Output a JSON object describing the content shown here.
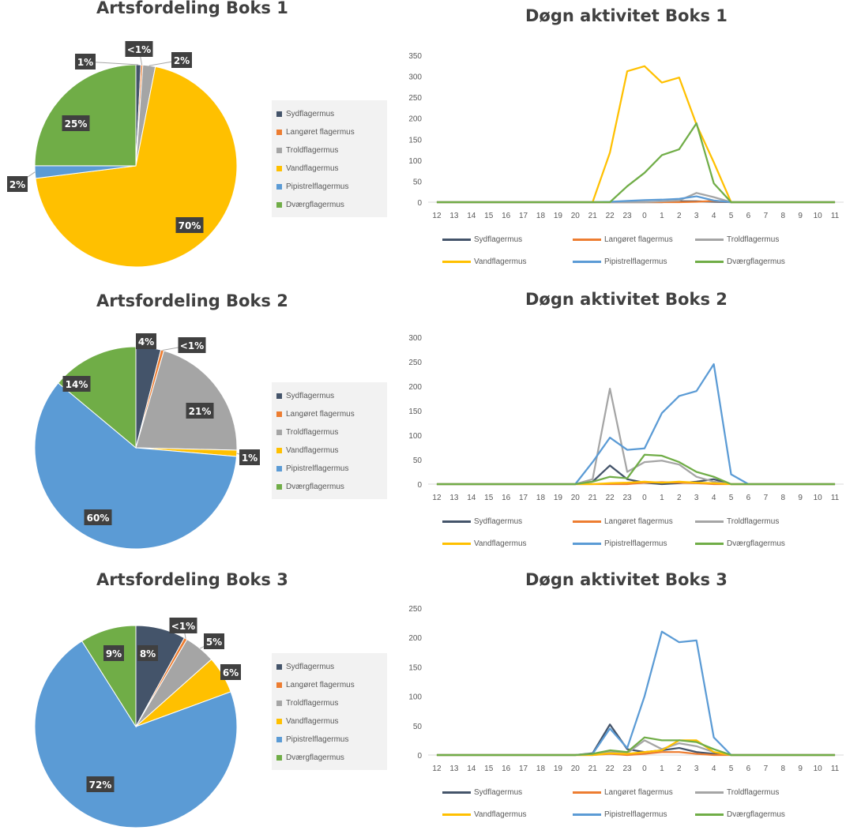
{
  "species": [
    "Sydflagermus",
    "Langøret flagermus",
    "Troldflagermus",
    "Vandflagermus",
    "Pipistrelflagermus",
    "Dværgflagermus"
  ],
  "colors": [
    "#44546a",
    "#ed7d31",
    "#a5a5a5",
    "#ffc000",
    "#5b9bd5",
    "#70ad47"
  ],
  "chart_data": [
    {
      "type": "pie",
      "title": "Artsfordeling Boks 1",
      "categories": [
        "Sydflagermus",
        "Langøret flagermus",
        "Troldflagermus",
        "Vandflagermus",
        "Pipistrelflagermus",
        "Dværgflagermus"
      ],
      "values": [
        0.8,
        0.3,
        2,
        70,
        2,
        25
      ],
      "labels": [
        "1%",
        "<1%",
        "2%",
        "70%",
        "2%",
        "25%"
      ],
      "legend": "right"
    },
    {
      "type": "line",
      "title": "Døgn aktivitet Boks 1",
      "categories": [
        "12",
        "13",
        "14",
        "15",
        "16",
        "17",
        "18",
        "19",
        "20",
        "21",
        "22",
        "23",
        "0",
        "1",
        "2",
        "3",
        "4",
        "5",
        "6",
        "7",
        "8",
        "9",
        "10",
        "11"
      ],
      "ylim": [
        0,
        350
      ],
      "yticks": [
        0,
        50,
        100,
        150,
        200,
        250,
        300,
        350
      ],
      "series": [
        {
          "name": "Sydflagermus",
          "values": [
            0,
            0,
            0,
            0,
            0,
            0,
            0,
            0,
            0,
            0,
            0,
            0,
            0,
            0,
            2,
            2,
            1,
            0,
            0,
            0,
            0,
            0,
            0,
            0
          ]
        },
        {
          "name": "Langøret flagermus",
          "values": [
            0,
            0,
            0,
            0,
            0,
            0,
            0,
            0,
            0,
            0,
            0,
            0,
            0,
            0,
            0,
            1,
            3,
            0,
            0,
            0,
            0,
            0,
            0,
            0
          ]
        },
        {
          "name": "Troldflagermus",
          "values": [
            0,
            0,
            0,
            0,
            0,
            0,
            0,
            0,
            0,
            0,
            0,
            0,
            0,
            2,
            4,
            22,
            12,
            0,
            0,
            0,
            0,
            0,
            0,
            0
          ]
        },
        {
          "name": "Vandflagermus",
          "values": [
            0,
            0,
            0,
            0,
            0,
            0,
            0,
            0,
            0,
            0,
            118,
            312,
            324,
            285,
            297,
            185,
            95,
            0,
            0,
            0,
            0,
            0,
            0,
            0
          ]
        },
        {
          "name": "Pipistrelflagermus",
          "values": [
            0,
            0,
            0,
            0,
            0,
            0,
            0,
            0,
            0,
            0,
            1,
            3,
            5,
            6,
            8,
            14,
            4,
            0,
            0,
            0,
            0,
            0,
            0,
            0
          ]
        },
        {
          "name": "Dværgflagermus",
          "values": [
            0,
            0,
            0,
            0,
            0,
            0,
            0,
            0,
            0,
            0,
            0,
            38,
            70,
            112,
            126,
            188,
            45,
            0,
            0,
            0,
            0,
            0,
            0,
            0
          ]
        }
      ],
      "legend": "bottom"
    },
    {
      "type": "pie",
      "title": "Artsfordeling Boks 2",
      "categories": [
        "Sydflagermus",
        "Langøret flagermus",
        "Troldflagermus",
        "Vandflagermus",
        "Pipistrelflagermus",
        "Dværgflagermus"
      ],
      "values": [
        4,
        0.5,
        21,
        1,
        60,
        14
      ],
      "labels": [
        "4%",
        "<1%",
        "21%",
        "1%",
        "60%",
        "14%"
      ],
      "legend": "right"
    },
    {
      "type": "line",
      "title": "Døgn aktivitet Boks 2",
      "categories": [
        "12",
        "13",
        "14",
        "15",
        "16",
        "17",
        "18",
        "19",
        "20",
        "21",
        "22",
        "23",
        "0",
        "1",
        "2",
        "3",
        "4",
        "5",
        "6",
        "7",
        "8",
        "9",
        "10",
        "11"
      ],
      "ylim": [
        0,
        300
      ],
      "yticks": [
        0,
        50,
        100,
        150,
        200,
        250,
        300
      ],
      "series": [
        {
          "name": "Sydflagermus",
          "values": [
            0,
            0,
            0,
            0,
            0,
            0,
            0,
            0,
            0,
            5,
            38,
            10,
            3,
            0,
            2,
            5,
            10,
            0,
            0,
            0,
            0,
            0,
            0,
            0
          ]
        },
        {
          "name": "Langøret flagermus",
          "values": [
            0,
            0,
            0,
            0,
            0,
            0,
            0,
            0,
            0,
            0,
            0,
            0,
            3,
            4,
            3,
            2,
            0,
            0,
            0,
            0,
            0,
            0,
            0,
            0
          ]
        },
        {
          "name": "Troldflagermus",
          "values": [
            0,
            0,
            0,
            0,
            0,
            0,
            0,
            0,
            0,
            10,
            195,
            25,
            45,
            48,
            40,
            15,
            5,
            0,
            0,
            0,
            0,
            0,
            0,
            0
          ]
        },
        {
          "name": "Vandflagermus",
          "values": [
            0,
            0,
            0,
            0,
            0,
            0,
            0,
            0,
            0,
            0,
            2,
            3,
            5,
            3,
            5,
            3,
            2,
            0,
            0,
            0,
            0,
            0,
            0,
            0
          ]
        },
        {
          "name": "Pipistrelflagermus",
          "values": [
            0,
            0,
            0,
            0,
            0,
            0,
            0,
            0,
            0,
            45,
            95,
            70,
            73,
            145,
            180,
            190,
            245,
            20,
            0,
            0,
            0,
            0,
            0,
            0
          ]
        },
        {
          "name": "Dværgflagermus",
          "values": [
            0,
            0,
            0,
            0,
            0,
            0,
            0,
            0,
            0,
            5,
            15,
            12,
            60,
            58,
            45,
            25,
            15,
            0,
            0,
            0,
            0,
            0,
            0,
            0
          ]
        }
      ],
      "legend": "bottom"
    },
    {
      "type": "pie",
      "title": "Artsfordeling Boks 3",
      "categories": [
        "Sydflagermus",
        "Langøret flagermus",
        "Troldflagermus",
        "Vandflagermus",
        "Pipistrelflagermus",
        "Dværgflagermus"
      ],
      "values": [
        8,
        0.5,
        5,
        6,
        72,
        9
      ],
      "labels": [
        "8%",
        "<1%",
        "5%",
        "6%",
        "72%",
        "9%"
      ],
      "legend": "right"
    },
    {
      "type": "line",
      "title": "Døgn aktivitet Boks 3",
      "categories": [
        "12",
        "13",
        "14",
        "15",
        "16",
        "17",
        "18",
        "19",
        "20",
        "21",
        "22",
        "23",
        "0",
        "1",
        "2",
        "3",
        "4",
        "5",
        "6",
        "7",
        "8",
        "9",
        "10",
        "11"
      ],
      "ylim": [
        0,
        250
      ],
      "yticks": [
        0,
        50,
        100,
        150,
        200,
        250
      ],
      "series": [
        {
          "name": "Sydflagermus",
          "values": [
            0,
            0,
            0,
            0,
            0,
            0,
            0,
            0,
            0,
            3,
            52,
            10,
            5,
            8,
            12,
            5,
            2,
            0,
            0,
            0,
            0,
            0,
            0,
            0
          ]
        },
        {
          "name": "Langøret flagermus",
          "values": [
            0,
            0,
            0,
            0,
            0,
            0,
            0,
            0,
            0,
            0,
            2,
            0,
            2,
            5,
            5,
            2,
            0,
            0,
            0,
            0,
            0,
            0,
            0,
            0
          ]
        },
        {
          "name": "Troldflagermus",
          "values": [
            0,
            0,
            0,
            0,
            0,
            0,
            0,
            0,
            0,
            2,
            5,
            3,
            25,
            10,
            20,
            15,
            5,
            0,
            0,
            0,
            0,
            0,
            0,
            0
          ]
        },
        {
          "name": "Vandflagermus",
          "values": [
            0,
            0,
            0,
            0,
            0,
            0,
            0,
            0,
            0,
            0,
            3,
            2,
            5,
            8,
            25,
            25,
            5,
            0,
            0,
            0,
            0,
            0,
            0,
            0
          ]
        },
        {
          "name": "Pipistrelflagermus",
          "values": [
            0,
            0,
            0,
            0,
            0,
            0,
            0,
            0,
            0,
            2,
            45,
            12,
            100,
            210,
            192,
            195,
            30,
            0,
            0,
            0,
            0,
            0,
            0,
            0
          ]
        },
        {
          "name": "Dværgflagermus",
          "values": [
            0,
            0,
            0,
            0,
            0,
            0,
            0,
            0,
            0,
            2,
            8,
            5,
            30,
            25,
            25,
            22,
            10,
            0,
            0,
            0,
            0,
            0,
            0,
            0
          ]
        }
      ],
      "legend": "bottom"
    }
  ]
}
